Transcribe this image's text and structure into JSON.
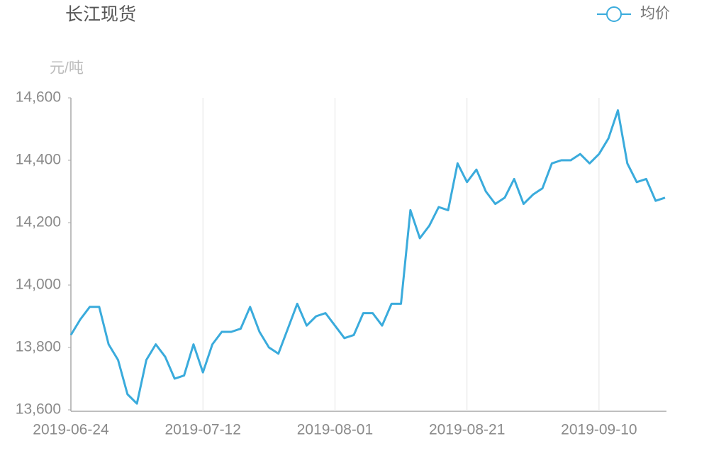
{
  "chart_data": {
    "type": "line",
    "title": "长江现货",
    "y_label": "元/吨",
    "categories": [
      "2019-06-24",
      null,
      null,
      null,
      null,
      null,
      null,
      null,
      null,
      null,
      null,
      null,
      null,
      null,
      "2019-07-12",
      null,
      null,
      null,
      null,
      null,
      null,
      null,
      null,
      null,
      null,
      null,
      null,
      null,
      "2019-08-01",
      null,
      null,
      null,
      null,
      null,
      null,
      null,
      null,
      null,
      null,
      null,
      null,
      null,
      "2019-08-21",
      null,
      null,
      null,
      null,
      null,
      null,
      null,
      null,
      null,
      null,
      null,
      null,
      null,
      "2019-09-10",
      null,
      null,
      null,
      null,
      null,
      null,
      null
    ],
    "series": [
      {
        "name": "均价",
        "color": "#3aabdc",
        "values": [
          13840,
          13890,
          13930,
          13930,
          13810,
          13760,
          13650,
          13620,
          13760,
          13810,
          13770,
          13700,
          13710,
          13810,
          13720,
          13810,
          13850,
          13850,
          13860,
          13930,
          13850,
          13800,
          13780,
          13860,
          13940,
          13870,
          13900,
          13910,
          13870,
          13830,
          13840,
          13910,
          13910,
          13870,
          13940,
          13940,
          14240,
          14150,
          14190,
          14250,
          14240,
          14390,
          14330,
          14370,
          14300,
          14260,
          14280,
          14340,
          14260,
          14290,
          14310,
          14390,
          14400,
          14400,
          14420,
          14390,
          14420,
          14470,
          14560,
          14390,
          14330,
          14340,
          14270,
          14280
        ]
      }
    ],
    "ylim": [
      13600,
      14600
    ],
    "yticks": [
      {
        "value": 13600,
        "label": "13,600"
      },
      {
        "value": 13800,
        "label": "13,800"
      },
      {
        "value": 14000,
        "label": "14,000"
      },
      {
        "value": 14200,
        "label": "14,200"
      },
      {
        "value": 14400,
        "label": "14,400"
      },
      {
        "value": 14600,
        "label": "14,600"
      }
    ],
    "grid": "x",
    "legend": "top-right"
  }
}
